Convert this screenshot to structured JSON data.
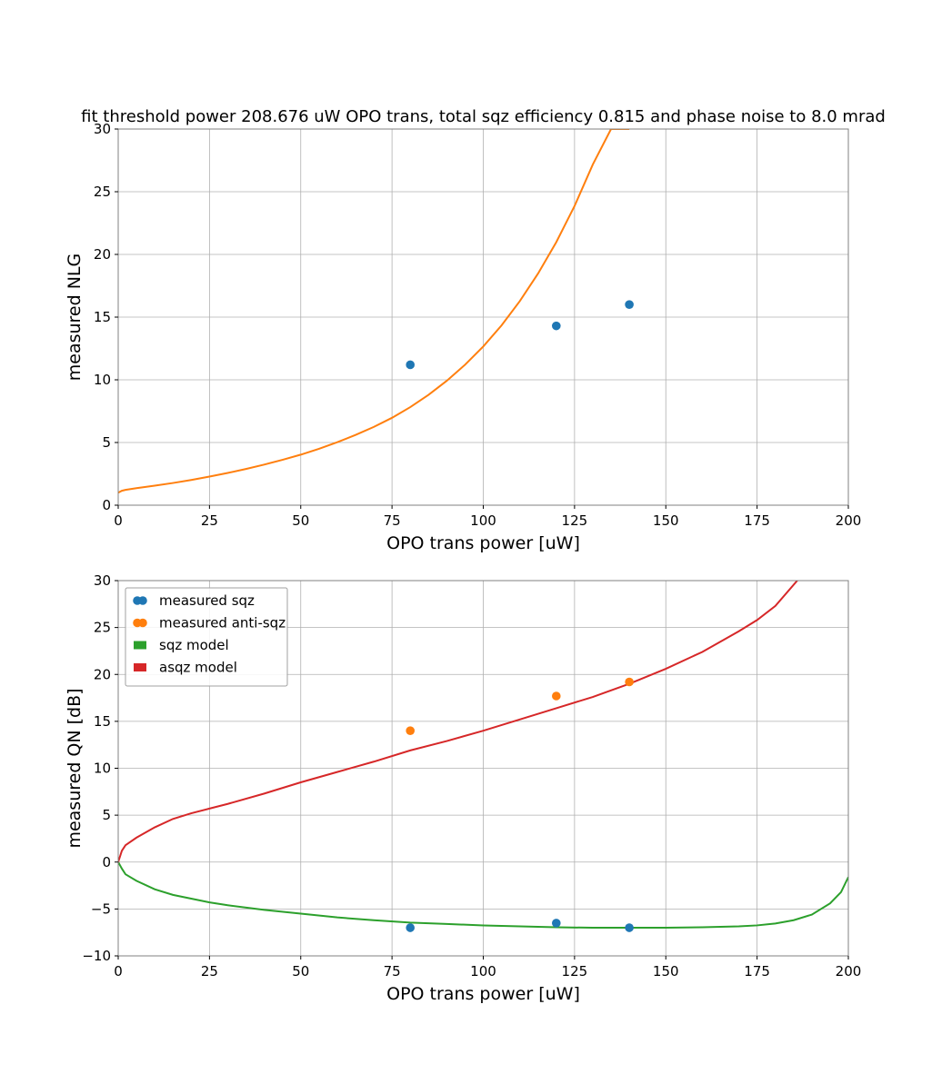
{
  "figure": {
    "background": "#ffffff",
    "colors": {
      "blue": "#1f77b4",
      "orange": "#ff7f0e",
      "green": "#2ca02c",
      "red": "#d62728",
      "grid": "#b0b0b0",
      "frame": "#808080"
    }
  },
  "chart_data": [
    {
      "type": "scatter",
      "title": "fit threshold power 208.676 uW OPO trans, total sqz efficiency 0.815 and phase noise to 8.0 mrad",
      "xlabel": "OPO trans power [uW]",
      "ylabel": "measured NLG",
      "xlim": [
        0,
        200
      ],
      "ylim": [
        0,
        30
      ],
      "xticks": [
        0,
        25,
        50,
        75,
        100,
        125,
        150,
        175,
        200
      ],
      "xtick_labels": [
        "0",
        "25",
        "50",
        "75",
        "100",
        "125",
        "150",
        "175",
        "200"
      ],
      "yticks": [
        0,
        5,
        10,
        15,
        20,
        25,
        30
      ],
      "ytick_labels": [
        "0",
        "5",
        "10",
        "15",
        "20",
        "25",
        "30"
      ],
      "grid": true,
      "legend": null,
      "series": [
        {
          "kind": "scatter",
          "color": "#1f77b4",
          "x": [
            80,
            120,
            140
          ],
          "y": [
            11.2,
            14.3,
            16.0
          ]
        },
        {
          "kind": "line",
          "color": "#ff7f0e",
          "x": [
            0,
            1,
            2,
            5,
            10,
            15,
            20,
            25,
            30,
            35,
            40,
            45,
            50,
            55,
            60,
            65,
            70,
            75,
            80,
            85,
            90,
            95,
            100,
            105,
            110,
            115,
            120,
            125,
            130,
            135,
            140
          ],
          "y": [
            1.0,
            1.15,
            1.22,
            1.36,
            1.56,
            1.77,
            2.01,
            2.28,
            2.57,
            2.89,
            3.24,
            3.62,
            4.03,
            4.5,
            5.02,
            5.6,
            6.24,
            6.97,
            7.82,
            8.8,
            9.92,
            11.2,
            12.66,
            14.34,
            16.27,
            18.47,
            20.98,
            23.86,
            27.17,
            30.0,
            30.0
          ]
        }
      ]
    },
    {
      "type": "scatter",
      "title": "",
      "xlabel": "OPO trans power [uW]",
      "ylabel": "measured QN [dB]",
      "xlim": [
        0,
        200
      ],
      "ylim": [
        -10,
        30
      ],
      "xticks": [
        0,
        25,
        50,
        75,
        100,
        125,
        150,
        175,
        200
      ],
      "xtick_labels": [
        "0",
        "25",
        "50",
        "75",
        "100",
        "125",
        "150",
        "175",
        "200"
      ],
      "yticks": [
        -10,
        -5,
        0,
        5,
        10,
        15,
        20,
        25,
        30
      ],
      "ytick_labels": [
        "−10",
        "−5",
        "0",
        "5",
        "10",
        "15",
        "20",
        "25",
        "30"
      ],
      "grid": true,
      "legend": {
        "placement": "upper-left",
        "entries": [
          {
            "label": "measured sqz",
            "color": "#1f77b4",
            "marker": "points"
          },
          {
            "label": "measured anti-sqz",
            "color": "#ff7f0e",
            "marker": "points"
          },
          {
            "label": "sqz model",
            "color": "#2ca02c",
            "marker": "patch"
          },
          {
            "label": "asqz model",
            "color": "#d62728",
            "marker": "patch"
          }
        ]
      },
      "series": [
        {
          "kind": "scatter",
          "name": "measured sqz",
          "color": "#1f77b4",
          "x": [
            80,
            120,
            140
          ],
          "y": [
            -7.0,
            -6.5,
            -7.0
          ]
        },
        {
          "kind": "scatter",
          "name": "measured anti-sqz",
          "color": "#ff7f0e",
          "x": [
            80,
            120,
            140
          ],
          "y": [
            14.0,
            17.7,
            19.2
          ]
        },
        {
          "kind": "line",
          "name": "sqz model",
          "color": "#2ca02c",
          "x": [
            0,
            1,
            2,
            5,
            10,
            15,
            20,
            25,
            30,
            40,
            50,
            60,
            70,
            80,
            90,
            100,
            110,
            120,
            130,
            140,
            150,
            160,
            170,
            175,
            180,
            185,
            190,
            195,
            198,
            200
          ],
          "y": [
            0,
            -0.7,
            -1.3,
            -2.0,
            -2.9,
            -3.5,
            -3.9,
            -4.3,
            -4.6,
            -5.1,
            -5.5,
            -5.9,
            -6.2,
            -6.45,
            -6.6,
            -6.75,
            -6.85,
            -6.95,
            -7.0,
            -7.0,
            -7.0,
            -6.95,
            -6.85,
            -6.75,
            -6.55,
            -6.2,
            -5.6,
            -4.4,
            -3.2,
            -1.6
          ]
        },
        {
          "kind": "line",
          "name": "asqz model",
          "color": "#d62728",
          "x": [
            0,
            1,
            2,
            5,
            10,
            15,
            20,
            25,
            30,
            40,
            50,
            60,
            70,
            80,
            90,
            100,
            110,
            120,
            130,
            140,
            150,
            160,
            170,
            175,
            180,
            186
          ],
          "y": [
            0,
            1.2,
            1.8,
            2.6,
            3.7,
            4.6,
            5.2,
            5.7,
            6.2,
            7.3,
            8.5,
            9.6,
            10.7,
            11.9,
            12.9,
            14.0,
            15.2,
            16.4,
            17.6,
            19.0,
            20.6,
            22.4,
            24.6,
            25.8,
            27.3,
            30.0
          ]
        }
      ]
    }
  ]
}
